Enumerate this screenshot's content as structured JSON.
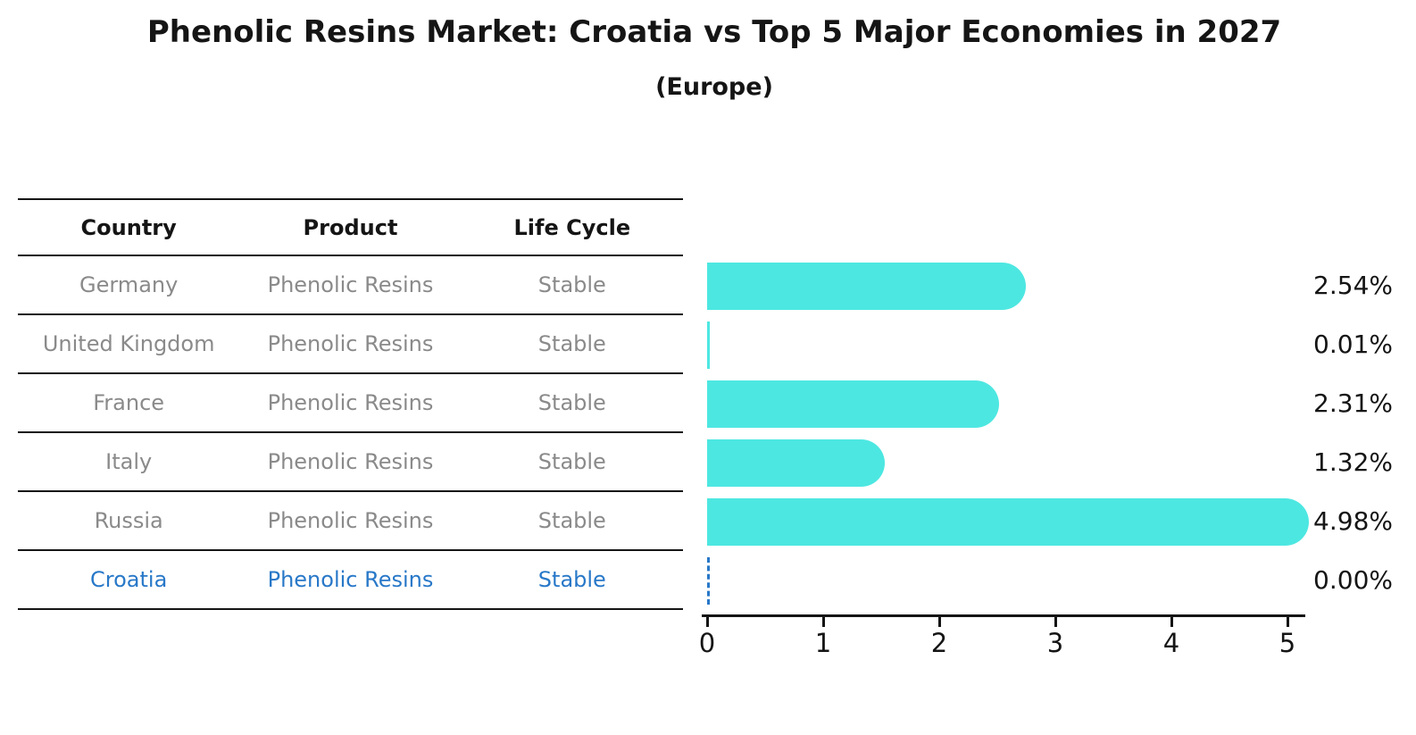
{
  "title": "Phenolic Resins Market: Croatia vs Top 5 Major Economies in 2027",
  "subtitle": "(Europe)",
  "table": {
    "headers": [
      "Country",
      "Product",
      "Life Cycle"
    ],
    "rows": [
      {
        "country": "Germany",
        "product": "Phenolic Resins",
        "life_cycle": "Stable",
        "highlight": false
      },
      {
        "country": "United Kingdom",
        "product": "Phenolic Resins",
        "life_cycle": "Stable",
        "highlight": false
      },
      {
        "country": "France",
        "product": "Phenolic Resins",
        "life_cycle": "Stable",
        "highlight": false
      },
      {
        "country": "Italy",
        "product": "Phenolic Resins",
        "life_cycle": "Stable",
        "highlight": false
      },
      {
        "country": "Russia",
        "product": "Phenolic Resins",
        "life_cycle": "Stable",
        "highlight": true
      },
      {
        "country": "Croatia",
        "product": "Phenolic Resins",
        "life_cycle": "Stable",
        "highlight": true
      }
    ]
  },
  "chart_data": {
    "type": "bar",
    "orientation": "horizontal",
    "title": "Phenolic Resins Market: Croatia vs Top 5 Major Economies in 2027 (Europe)",
    "categories": [
      "Germany",
      "United Kingdom",
      "France",
      "Italy",
      "Russia",
      "Croatia"
    ],
    "values": [
      2.54,
      0.01,
      2.31,
      1.32,
      4.98,
      0.0
    ],
    "value_labels": [
      "2.54%",
      "0.01%",
      "2.31%",
      "1.32%",
      "4.98%",
      "0.00%"
    ],
    "xlabel": "",
    "ylabel": "",
    "xticks": [
      "0",
      "1",
      "2",
      "3",
      "4",
      "5"
    ],
    "xlim": [
      0,
      5.2
    ],
    "grid": false,
    "legend": false,
    "bar_color": "#4DE7E1",
    "highlight_color": "#2878C8",
    "zero_value_marker": "dashed-blue-line"
  },
  "colors": {
    "bar": "#4DE7E1",
    "highlight_text": "#2878C8",
    "row_text": "#8A8A8A",
    "header_text": "#151515",
    "axis": "#151515",
    "background": "#FFFFFF"
  }
}
